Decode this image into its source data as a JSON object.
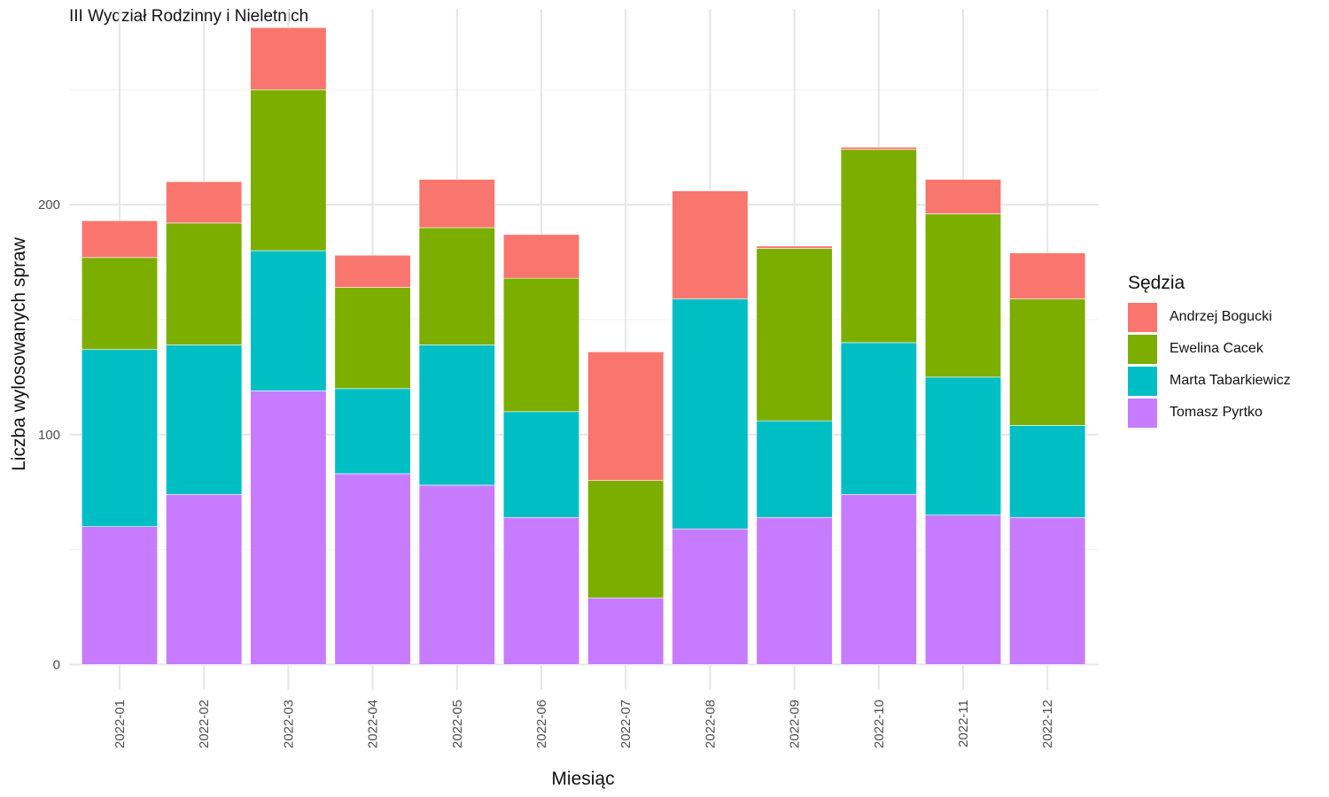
{
  "chart_data": {
    "type": "bar",
    "stacked": true,
    "title": "III Wydział Rodzinny i Nieletnich",
    "xlabel": "Miesiąc",
    "ylabel": "Liczba wylosowanych spraw",
    "ylim": [
      -11,
      289
    ],
    "y_ticks": [
      0,
      100,
      200
    ],
    "grid": true,
    "legend_position": "right",
    "legend_title": "Sędzia",
    "categories": [
      "2022-01",
      "2022-02",
      "2022-03",
      "2022-04",
      "2022-05",
      "2022-06",
      "2022-07",
      "2022-08",
      "2022-09",
      "2022-10",
      "2022-11",
      "2022-12"
    ],
    "series": [
      {
        "name": "Andrzej Bogucki",
        "color": "#F8766D",
        "values": [
          16,
          18,
          27,
          14,
          21,
          19,
          56,
          47,
          1,
          1,
          15,
          20
        ]
      },
      {
        "name": "Ewelina Cacek",
        "color": "#7CAE00",
        "values": [
          40,
          53,
          70,
          44,
          51,
          58,
          51,
          0,
          75,
          84,
          71,
          55
        ]
      },
      {
        "name": "Marta Tabarkiewicz",
        "color": "#00BFC4",
        "values": [
          77,
          65,
          61,
          37,
          61,
          46,
          0,
          100,
          42,
          66,
          60,
          40
        ]
      },
      {
        "name": "Tomasz Pyrtko",
        "color": "#C77CFF",
        "values": [
          60,
          74,
          119,
          83,
          78,
          64,
          29,
          59,
          64,
          74,
          65,
          64
        ]
      }
    ]
  }
}
